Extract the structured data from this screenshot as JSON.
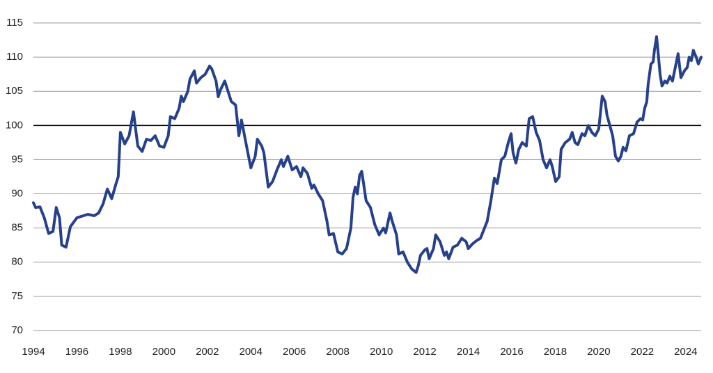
{
  "chart_data": {
    "type": "line",
    "color": "#26408b",
    "grid": true,
    "baseline": 100,
    "xlim": [
      1994,
      2024.71
    ],
    "ylim": [
      70,
      115
    ],
    "xticks": [
      1994,
      1996,
      1998,
      2000,
      2002,
      2004,
      2006,
      2008,
      2010,
      2012,
      2014,
      2016,
      2018,
      2020,
      2022,
      2024
    ],
    "yticks": [
      70,
      75,
      80,
      85,
      90,
      95,
      100,
      105,
      110,
      115
    ],
    "x": [
      1994.0,
      1994.1,
      1994.3,
      1994.5,
      1994.7,
      1994.9,
      1995.05,
      1995.2,
      1995.3,
      1995.5,
      1995.7,
      1996.0,
      1996.3,
      1996.5,
      1996.8,
      1997.0,
      1997.2,
      1997.4,
      1997.6,
      1997.8,
      1997.9,
      1998.0,
      1998.2,
      1998.4,
      1998.6,
      1998.8,
      1999.0,
      1999.2,
      1999.4,
      1999.6,
      1999.8,
      2000.0,
      2000.2,
      2000.3,
      2000.5,
      2000.7,
      2000.8,
      2000.9,
      2001.1,
      2001.2,
      2001.4,
      2001.5,
      2001.7,
      2001.9,
      2002.1,
      2002.2,
      2002.4,
      2002.5,
      2002.6,
      2002.8,
      2003.1,
      2003.3,
      2003.45,
      2003.57,
      2003.8,
      2004.0,
      2004.2,
      2004.3,
      2004.5,
      2004.6,
      2004.8,
      2005.0,
      2005.2,
      2005.4,
      2005.5,
      2005.7,
      2005.9,
      2006.1,
      2006.3,
      2006.4,
      2006.6,
      2006.8,
      2006.9,
      2007.1,
      2007.3,
      2007.5,
      2007.6,
      2007.8,
      2008.0,
      2008.2,
      2008.4,
      2008.6,
      2008.7,
      2008.8,
      2008.9,
      2009.0,
      2009.1,
      2009.3,
      2009.5,
      2009.7,
      2009.9,
      2010.1,
      2010.2,
      2010.4,
      2010.5,
      2010.7,
      2010.8,
      2011.0,
      2011.2,
      2011.4,
      2011.6,
      2011.7,
      2011.8,
      2012.0,
      2012.1,
      2012.2,
      2012.4,
      2012.5,
      2012.7,
      2012.9,
      2013.0,
      2013.1,
      2013.3,
      2013.5,
      2013.7,
      2013.9,
      2014.0,
      2014.2,
      2014.4,
      2014.56,
      2014.87,
      2015.04,
      2015.2,
      2015.33,
      2015.52,
      2015.68,
      2015.84,
      2015.97,
      2016.06,
      2016.19,
      2016.32,
      2016.48,
      2016.67,
      2016.8,
      2016.96,
      2017.12,
      2017.28,
      2017.44,
      2017.6,
      2017.76,
      2017.86,
      2018.02,
      2018.18,
      2018.27,
      2018.46,
      2018.66,
      2018.78,
      2018.91,
      2019.04,
      2019.23,
      2019.36,
      2019.52,
      2019.68,
      2019.84,
      2020.0,
      2020.16,
      2020.29,
      2020.38,
      2020.51,
      2020.64,
      2020.77,
      2020.9,
      2021.02,
      2021.12,
      2021.25,
      2021.41,
      2021.6,
      2021.76,
      2021.92,
      2022.02,
      2022.11,
      2022.21,
      2022.27,
      2022.4,
      2022.5,
      2022.56,
      2022.66,
      2022.75,
      2022.82,
      2022.91,
      2023.04,
      2023.14,
      2023.27,
      2023.39,
      2023.52,
      2023.65,
      2023.78,
      2023.94,
      2024.07,
      2024.16,
      2024.26,
      2024.35,
      2024.48,
      2024.58,
      2024.71
    ],
    "values": [
      88.7,
      88.0,
      88.1,
      86.5,
      84.2,
      84.5,
      88.0,
      86.5,
      82.5,
      82.2,
      85.2,
      86.5,
      86.8,
      87.0,
      86.8,
      87.2,
      88.5,
      90.7,
      89.3,
      91.5,
      92.5,
      99.0,
      97.3,
      98.5,
      102.0,
      97.0,
      96.2,
      98.0,
      97.8,
      98.5,
      97.0,
      96.8,
      98.5,
      101.3,
      101.0,
      102.5,
      104.3,
      103.5,
      105.0,
      106.8,
      108.0,
      106.2,
      107.0,
      107.5,
      108.7,
      108.3,
      106.5,
      104.2,
      105.2,
      106.5,
      103.5,
      103.0,
      98.5,
      100.8,
      97.0,
      93.8,
      95.5,
      98.0,
      97.0,
      96.0,
      91.0,
      91.8,
      93.5,
      95.0,
      94.0,
      95.5,
      93.5,
      94.0,
      92.5,
      93.8,
      93.0,
      90.8,
      91.3,
      90.0,
      89.0,
      86.0,
      84.0,
      84.2,
      81.5,
      81.2,
      82.0,
      85.0,
      89.5,
      91.0,
      90.0,
      92.7,
      93.3,
      89.0,
      88.0,
      85.5,
      84.0,
      85.0,
      84.3,
      87.2,
      86.0,
      84.0,
      81.2,
      81.5,
      80.0,
      79.0,
      78.5,
      79.5,
      81.0,
      81.8,
      82.0,
      80.5,
      82.0,
      84.0,
      83.0,
      81.0,
      81.5,
      80.5,
      82.2,
      82.5,
      83.5,
      83.0,
      82.0,
      82.7,
      83.2,
      83.5,
      86.0,
      89.0,
      92.3,
      91.5,
      95.0,
      95.5,
      97.5,
      98.8,
      96.0,
      94.5,
      96.5,
      97.5,
      97.0,
      101.0,
      101.3,
      99.0,
      97.8,
      95.0,
      93.8,
      95.0,
      94.0,
      91.8,
      92.5,
      96.5,
      97.5,
      98.0,
      99.0,
      97.5,
      97.2,
      98.8,
      98.5,
      100.0,
      99.0,
      98.5,
      99.5,
      104.3,
      103.5,
      101.5,
      100.0,
      98.5,
      95.5,
      94.8,
      95.5,
      96.8,
      96.3,
      98.5,
      98.8,
      100.5,
      101.0,
      100.8,
      102.5,
      103.5,
      106.0,
      109.0,
      109.3,
      111.0,
      113.0,
      110.0,
      107.5,
      105.8,
      106.5,
      106.2,
      107.2,
      106.5,
      108.5,
      110.5,
      107.0,
      108.0,
      108.5,
      110.0,
      109.5,
      111.0,
      110.0,
      109.0,
      110.0
    ]
  }
}
